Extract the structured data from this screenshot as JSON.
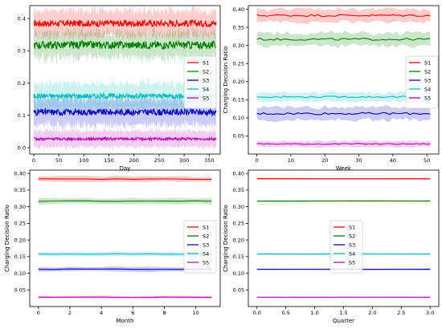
{
  "chart_data": [
    {
      "type": "line",
      "xlabel": "Day",
      "ylabel": "",
      "xlim": [
        -8,
        372
      ],
      "ylim": [
        -0.02,
        0.44
      ],
      "xticks": [
        0,
        50,
        100,
        150,
        200,
        250,
        300,
        350
      ],
      "yticks": [
        0.0,
        0.1,
        0.2,
        0.3,
        0.4
      ],
      "ytick_labels": [
        "0.0",
        "0.1",
        "0.2",
        "0.3",
        "0.4"
      ],
      "legend_position": "center-right",
      "x": {
        "start": 0,
        "end": 364,
        "count": 365
      },
      "series": [
        {
          "name": "S1",
          "color": "#ff0000",
          "mean": 0.385,
          "band": 0.04,
          "noise": 0.01
        },
        {
          "name": "S2",
          "color": "#008000",
          "mean": 0.318,
          "band": 0.04,
          "noise": 0.012
        },
        {
          "name": "S3",
          "color": "#0000cc",
          "mean": 0.11,
          "band": 0.04,
          "noise": 0.01
        },
        {
          "name": "S4",
          "color": "#00bfbf",
          "mean": 0.16,
          "band": 0.04,
          "noise": 0.008
        },
        {
          "name": "S5",
          "color": "#bf00bf",
          "mean": 0.027,
          "band": 0.025,
          "noise": 0.004
        }
      ]
    },
    {
      "type": "line",
      "xlabel": "Week",
      "ylabel": "Charging Decision Ratio",
      "xlim": [
        -2.5,
        53.5
      ],
      "ylim": [
        0.0,
        0.41
      ],
      "xticks": [
        0,
        10,
        20,
        30,
        40,
        50
      ],
      "yticks": [
        0.05,
        0.1,
        0.15,
        0.2,
        0.25,
        0.3,
        0.35,
        0.4
      ],
      "ytick_labels": [
        "0.05",
        "0.10",
        "0.15",
        "0.20",
        "0.25",
        "0.30",
        "0.35",
        "0.40"
      ],
      "legend_position": "center-right",
      "x": {
        "start": 0,
        "end": 51,
        "count": 52
      },
      "series": [
        {
          "name": "S1",
          "color": "#ff0000",
          "mean": 0.383,
          "band": 0.018,
          "noise": 0.003
        },
        {
          "name": "S2",
          "color": "#008000",
          "mean": 0.317,
          "band": 0.018,
          "noise": 0.003
        },
        {
          "name": "S3",
          "color": "#0000cc",
          "mean": 0.112,
          "band": 0.018,
          "noise": 0.003
        },
        {
          "name": "S4",
          "color": "#00bfbf",
          "mean": 0.158,
          "band": 0.012,
          "noise": 0.002
        },
        {
          "name": "S5",
          "color": "#bf00bf",
          "mean": 0.028,
          "band": 0.008,
          "noise": 0.0015
        }
      ]
    },
    {
      "type": "line",
      "xlabel": "Month",
      "ylabel": "Charging Decision Ratio",
      "xlim": [
        -0.55,
        11.55
      ],
      "ylim": [
        0.0,
        0.41
      ],
      "xticks": [
        0,
        2,
        4,
        6,
        8,
        10
      ],
      "yticks": [
        0.05,
        0.1,
        0.15,
        0.2,
        0.25,
        0.3,
        0.35,
        0.4
      ],
      "ytick_labels": [
        "0.05",
        "0.10",
        "0.15",
        "0.20",
        "0.25",
        "0.30",
        "0.35",
        "0.40"
      ],
      "legend_position": "center-right",
      "x": {
        "start": 0,
        "end": 11,
        "count": 12
      },
      "series": [
        {
          "name": "S1",
          "color": "#ff0000",
          "mean": 0.383,
          "band": 0.008,
          "noise": 0.001
        },
        {
          "name": "S2",
          "color": "#008000",
          "mean": 0.317,
          "band": 0.008,
          "noise": 0.001
        },
        {
          "name": "S3",
          "color": "#0000cc",
          "mean": 0.112,
          "band": 0.007,
          "noise": 0.001
        },
        {
          "name": "S4",
          "color": "#00bfbf",
          "mean": 0.158,
          "band": 0.006,
          "noise": 0.0008
        },
        {
          "name": "S5",
          "color": "#bf00bf",
          "mean": 0.028,
          "band": 0.004,
          "noise": 0.0005
        }
      ]
    },
    {
      "type": "line",
      "xlabel": "Quarter",
      "ylabel": "Charging Decision Ratio",
      "xlim": [
        -0.15,
        3.15
      ],
      "ylim": [
        0.0,
        0.41
      ],
      "xticks": [
        0.0,
        0.5,
        1.0,
        1.5,
        2.0,
        2.5,
        3.0
      ],
      "xtick_labels": [
        "0.0",
        "0.5",
        "1.0",
        "1.5",
        "2.0",
        "2.5",
        "3.0"
      ],
      "yticks": [
        0.05,
        0.1,
        0.15,
        0.2,
        0.25,
        0.3,
        0.35,
        0.4
      ],
      "ytick_labels": [
        "0.05",
        "0.10",
        "0.15",
        "0.20",
        "0.25",
        "0.30",
        "0.35",
        "0.40"
      ],
      "legend_position": "center",
      "x": {
        "start": 0,
        "end": 3,
        "count": 4
      },
      "series": [
        {
          "name": "S1",
          "color": "#ff0000",
          "mean": 0.384,
          "band": 0.003,
          "noise": 0.0003
        },
        {
          "name": "S2",
          "color": "#008000",
          "mean": 0.317,
          "band": 0.003,
          "noise": 0.0003
        },
        {
          "name": "S3",
          "color": "#0000cc",
          "mean": 0.112,
          "band": 0.003,
          "noise": 0.0003
        },
        {
          "name": "S4",
          "color": "#00bfbf",
          "mean": 0.158,
          "band": 0.003,
          "noise": 0.0003
        },
        {
          "name": "S5",
          "color": "#bf00bf",
          "mean": 0.028,
          "band": 0.002,
          "noise": 0.0002
        }
      ]
    }
  ]
}
